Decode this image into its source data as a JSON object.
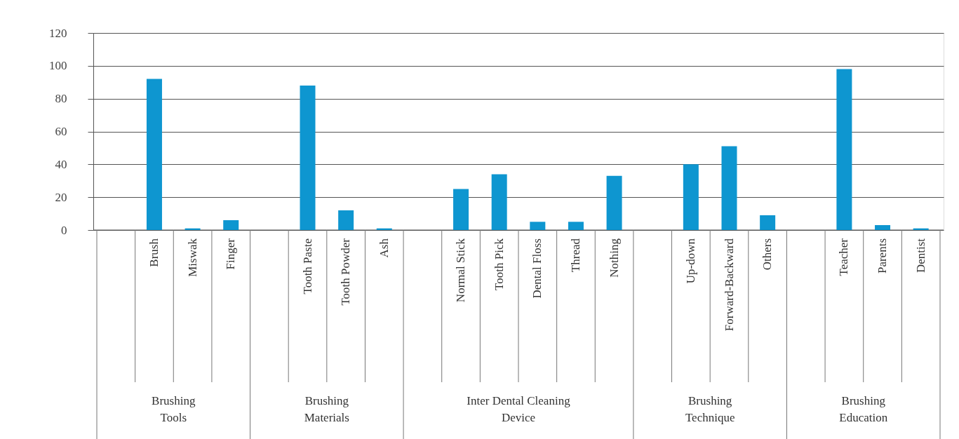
{
  "chart_data": {
    "type": "bar",
    "categories": [
      null,
      "Brush",
      "Miswak",
      "Finger",
      null,
      "Tooth Paste",
      "Tooth Powder",
      "Ash",
      null,
      "Normal Stick",
      "Tooth Pick",
      "Dental Floss",
      "Thread",
      "Nothing",
      null,
      "Up-down",
      "Forward-Backward",
      "Others",
      null,
      "Teacher",
      "Parents",
      "Dentist"
    ],
    "values": [
      null,
      92,
      1,
      6,
      null,
      88,
      12,
      1,
      null,
      25,
      34,
      5,
      5,
      33,
      null,
      40,
      51,
      9,
      null,
      98,
      3,
      1
    ],
    "color": "#0e96d0",
    "ylim": [
      0,
      120
    ],
    "yticks": [
      0,
      20,
      40,
      60,
      80,
      100,
      120
    ],
    "grid": "y",
    "annotations": [
      "Brushing\nTools",
      "Brushing\nMaterials",
      "Inter Dental Cleaning\nDevice",
      "Brushing\nTechnique",
      "Brushing\nEducation"
    ]
  }
}
